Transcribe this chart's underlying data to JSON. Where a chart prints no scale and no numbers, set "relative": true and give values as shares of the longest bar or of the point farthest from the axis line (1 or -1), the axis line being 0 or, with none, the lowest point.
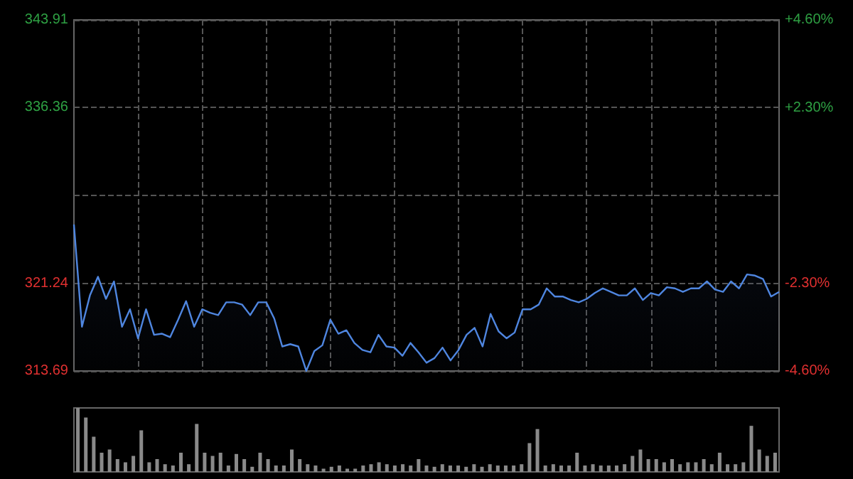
{
  "chart_data": [
    {
      "type": "area",
      "categories": [
        null,
        null,
        null,
        null,
        null,
        null,
        null,
        null,
        null,
        null,
        null,
        null,
        null,
        null,
        null,
        null,
        null,
        null,
        null,
        null,
        null,
        null,
        null,
        null,
        null,
        null,
        null,
        null,
        null,
        null,
        null,
        null,
        null,
        null,
        null,
        null,
        null,
        null,
        null,
        null,
        null,
        null,
        null,
        null,
        null,
        null,
        null,
        null,
        null,
        null,
        null,
        null,
        null,
        null,
        null,
        null,
        null,
        null,
        null,
        null,
        null,
        null,
        null,
        null,
        null,
        null,
        null,
        null,
        null,
        null,
        null,
        null,
        null,
        null,
        null,
        null,
        null,
        null,
        null,
        null,
        null,
        null,
        null,
        null,
        null,
        null,
        null,
        null,
        null
      ],
      "series": [
        {
          "color": "#4f86e0",
          "values": [
            326.3,
            317.5,
            320.2,
            321.8,
            319.9,
            321.4,
            317.5,
            319.0,
            316.5,
            319.0,
            316.8,
            316.9,
            316.6,
            318.1,
            319.7,
            317.5,
            319.0,
            318.7,
            318.5,
            319.6,
            319.6,
            319.4,
            318.5,
            319.6,
            319.6,
            318.2,
            315.8,
            316.0,
            315.8,
            313.7,
            315.4,
            315.9,
            318.1,
            316.9,
            317.2,
            316.1,
            315.5,
            315.3,
            316.8,
            315.8,
            315.7,
            315.0,
            316.1,
            315.3,
            314.4,
            314.8,
            315.7,
            314.6,
            315.5,
            316.8,
            317.4,
            315.8,
            318.6,
            317.1,
            316.5,
            317.0,
            319.0,
            319.0,
            319.4,
            320.8,
            320.1,
            320.1,
            319.8,
            319.6,
            319.9,
            320.4,
            320.8,
            320.5,
            320.2,
            320.2,
            320.8,
            319.8,
            320.4,
            320.2,
            320.9,
            320.8,
            320.5,
            320.8,
            320.8,
            321.4,
            320.7,
            320.5,
            321.4,
            320.8,
            322.0,
            321.9,
            321.6,
            320.1,
            320.5
          ]
        }
      ],
      "ylim": [
        313.69,
        343.91
      ],
      "yticks": [
        313.69,
        321.24,
        {
          "value": 328.8,
          "label": null
        },
        336.36,
        343.91
      ],
      "y2lim": [
        -4.6,
        4.6
      ],
      "y2ticks": [
        {
          "value": -4.6,
          "label": "-4.60%"
        },
        {
          "value": -2.3,
          "label": "-2.30%"
        },
        {
          "value": 0,
          "label": null
        },
        {
          "value": 2.3,
          "label": "+2.30%"
        },
        {
          "value": 4.6,
          "label": "+4.60%"
        }
      ],
      "grid": true,
      "tick_labels": "y"
    },
    {
      "type": "bar",
      "relative": true,
      "color": "#8a8a8a",
      "categories": [
        null,
        null,
        null,
        null,
        null,
        null,
        null,
        null,
        null,
        null,
        null,
        null,
        null,
        null,
        null,
        null,
        null,
        null,
        null,
        null,
        null,
        null,
        null,
        null,
        null,
        null,
        null,
        null,
        null,
        null,
        null,
        null,
        null,
        null,
        null,
        null,
        null,
        null,
        null,
        null,
        null,
        null,
        null,
        null,
        null,
        null,
        null,
        null,
        null,
        null,
        null,
        null,
        null,
        null,
        null,
        null,
        null,
        null,
        null,
        null,
        null,
        null,
        null,
        null,
        null,
        null,
        null,
        null,
        null,
        null,
        null,
        null,
        null,
        null,
        null,
        null,
        null,
        null,
        null,
        null,
        null,
        null,
        null,
        null,
        null,
        null,
        null,
        null,
        null
      ],
      "values": [
        1,
        0.85,
        0.55,
        0.3,
        0.35,
        0.2,
        0.15,
        0.25,
        0.65,
        0.15,
        0.2,
        0.12,
        0.1,
        0.3,
        0.12,
        0.75,
        0.3,
        0.25,
        0.3,
        0.1,
        0.28,
        0.2,
        0.08,
        0.3,
        0.2,
        0.1,
        0.1,
        0.35,
        0.2,
        0.12,
        0.1,
        0.05,
        0.08,
        0.1,
        0.05,
        0.05,
        0.1,
        0.12,
        0.15,
        0.12,
        0.1,
        0.12,
        0.1,
        0.2,
        0.1,
        0.08,
        0.12,
        0.1,
        0.1,
        0.08,
        0.12,
        0.08,
        0.12,
        0.1,
        0.1,
        0.1,
        0.12,
        0.45,
        0.67,
        0.1,
        0.12,
        0.1,
        0.1,
        0.3,
        0.1,
        0.12,
        0.1,
        0.1,
        0.1,
        0.12,
        0.25,
        0.35,
        0.2,
        0.2,
        0.15,
        0.2,
        0.12,
        0.15,
        0.15,
        0.2,
        0.12,
        0.3,
        0.12,
        0.12,
        0.15,
        0.72,
        0.35,
        0.25,
        0.3
      ]
    }
  ]
}
